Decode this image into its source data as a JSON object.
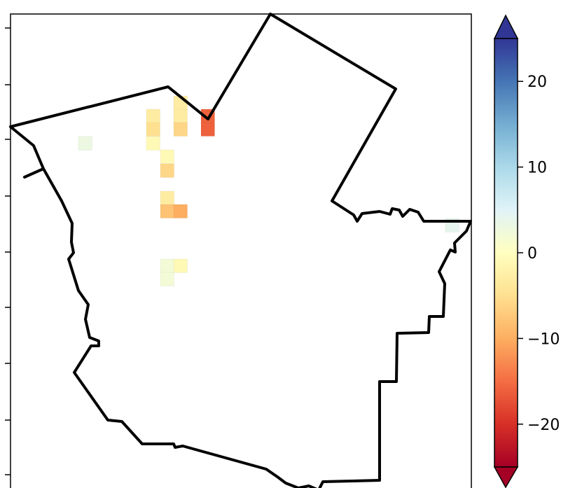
{
  "map": {
    "region": "boundary-outline",
    "cells": [
      {
        "value": -3
      },
      {
        "value": -5
      },
      {
        "value": -1
      },
      {
        "value": -3
      },
      {
        "value": -3
      },
      {
        "value": -6
      },
      {
        "value": -16
      },
      {
        "value": -16
      },
      {
        "value": 3
      },
      {
        "value": -1
      },
      {
        "value": -6
      },
      {
        "value": -3
      },
      {
        "value": -8
      },
      {
        "value": -10
      },
      {
        "value": 2
      },
      {
        "value": 2
      },
      {
        "value": -1
      },
      {
        "value": 4
      }
    ]
  },
  "colorbar": {
    "min": -25,
    "max": 25,
    "extend": "both",
    "colormap": "RdYlBu",
    "ticks": [
      {
        "value": 20,
        "label": "20"
      },
      {
        "value": 10,
        "label": "10"
      },
      {
        "value": 0,
        "label": "0"
      },
      {
        "value": -10,
        "label": "−10"
      },
      {
        "value": -20,
        "label": "−20"
      }
    ]
  },
  "left_axis_tick_count": 9
}
